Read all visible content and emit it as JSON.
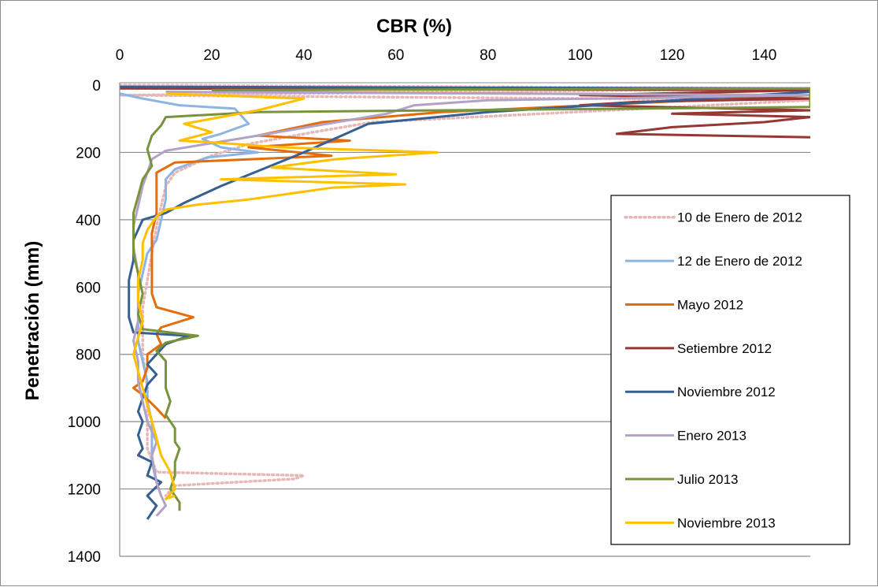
{
  "chart_data": {
    "type": "line",
    "title": "",
    "xlabel": "CBR (%)",
    "ylabel": "Penetración (mm)",
    "xlim": [
      0,
      150
    ],
    "ylim": [
      0,
      1400
    ],
    "y_inverted": true,
    "x_axis_position": "top",
    "x_ticks": [
      0,
      20,
      40,
      60,
      80,
      100,
      120,
      140
    ],
    "y_ticks": [
      0,
      200,
      400,
      600,
      800,
      1000,
      1200,
      1400
    ],
    "grid": "horizontal",
    "legend_position": "right",
    "series": [
      {
        "name": "10 de Enero de 2012",
        "color": "#e6b8b7",
        "style": "dotted",
        "points": [
          [
            0,
            0
          ],
          [
            150,
            10
          ],
          [
            0,
            30
          ],
          [
            150,
            45
          ],
          [
            55,
            110
          ],
          [
            42,
            140
          ],
          [
            28,
            175
          ],
          [
            20,
            210
          ],
          [
            12,
            260
          ],
          [
            10,
            300
          ],
          [
            9,
            360
          ],
          [
            8,
            420
          ],
          [
            7,
            500
          ],
          [
            6,
            580
          ],
          [
            5,
            660
          ],
          [
            5,
            740
          ],
          [
            5,
            800
          ],
          [
            6,
            900
          ],
          [
            6,
            1000
          ],
          [
            6,
            1080
          ],
          [
            8,
            1150
          ],
          [
            40,
            1160
          ],
          [
            38,
            1170
          ],
          [
            12,
            1190
          ],
          [
            10,
            1220
          ]
        ]
      },
      {
        "name": "12 de Enero de 2012",
        "color": "#8eb4e3",
        "style": "solid",
        "points": [
          [
            0,
            25
          ],
          [
            5,
            40
          ],
          [
            13,
            60
          ],
          [
            25,
            70
          ],
          [
            28,
            115
          ],
          [
            22,
            145
          ],
          [
            18,
            160
          ],
          [
            22,
            185
          ],
          [
            30,
            200
          ],
          [
            19,
            215
          ],
          [
            12,
            250
          ],
          [
            10,
            280
          ],
          [
            10,
            340
          ],
          [
            9,
            400
          ],
          [
            8,
            460
          ],
          [
            6,
            500
          ],
          [
            5,
            560
          ],
          [
            4,
            620
          ],
          [
            4,
            700
          ],
          [
            4,
            760
          ],
          [
            5,
            820
          ],
          [
            6,
            880
          ],
          [
            6,
            940
          ],
          [
            7,
            1000
          ],
          [
            7,
            1060
          ],
          [
            7,
            1120
          ],
          [
            8,
            1180
          ]
        ]
      },
      {
        "name": "Mayo 2012",
        "color": "#e46c0a",
        "style": "solid",
        "points": [
          [
            20,
            20
          ],
          [
            150,
            30
          ],
          [
            70,
            80
          ],
          [
            44,
            110
          ],
          [
            30,
            150
          ],
          [
            50,
            165
          ],
          [
            28,
            185
          ],
          [
            46,
            210
          ],
          [
            12,
            230
          ],
          [
            8,
            260
          ],
          [
            8,
            320
          ],
          [
            8,
            380
          ],
          [
            7,
            440
          ],
          [
            7,
            500
          ],
          [
            7,
            560
          ],
          [
            7,
            620
          ],
          [
            8,
            660
          ],
          [
            16,
            690
          ],
          [
            9,
            720
          ],
          [
            8,
            740
          ],
          [
            9,
            770
          ],
          [
            6,
            800
          ],
          [
            6,
            840
          ],
          [
            5,
            880
          ],
          [
            3,
            900
          ],
          [
            5,
            920
          ],
          [
            8,
            960
          ],
          [
            10,
            990
          ]
        ]
      },
      {
        "name": "Setiembre 2012",
        "color": "#953735",
        "style": "solid",
        "points": [
          [
            0,
            10
          ],
          [
            150,
            15
          ],
          [
            100,
            30
          ],
          [
            150,
            40
          ],
          [
            112,
            50
          ],
          [
            100,
            60
          ],
          [
            150,
            75
          ],
          [
            120,
            85
          ],
          [
            150,
            95
          ],
          [
            140,
            110
          ],
          [
            120,
            125
          ],
          [
            108,
            145
          ],
          [
            150,
            155
          ]
        ]
      },
      {
        "name": "Noviembre 2012",
        "color": "#376092",
        "style": "solid",
        "points": [
          [
            0,
            5
          ],
          [
            150,
            10
          ],
          [
            150,
            20
          ],
          [
            80,
            80
          ],
          [
            54,
            115
          ],
          [
            40,
            200
          ],
          [
            22,
            300
          ],
          [
            14,
            350
          ],
          [
            10,
            380
          ],
          [
            5,
            400
          ],
          [
            3,
            460
          ],
          [
            3,
            520
          ],
          [
            2,
            580
          ],
          [
            2,
            640
          ],
          [
            2,
            690
          ],
          [
            3,
            735
          ],
          [
            15,
            745
          ],
          [
            10,
            770
          ],
          [
            8,
            800
          ],
          [
            6,
            830
          ],
          [
            8,
            860
          ],
          [
            6,
            890
          ],
          [
            5,
            930
          ],
          [
            4,
            970
          ],
          [
            5,
            1000
          ],
          [
            4,
            1040
          ],
          [
            5,
            1080
          ],
          [
            4,
            1100
          ],
          [
            7,
            1120
          ],
          [
            6,
            1160
          ],
          [
            9,
            1180
          ],
          [
            6,
            1220
          ],
          [
            8,
            1250
          ],
          [
            6,
            1290
          ]
        ]
      },
      {
        "name": "Enero 2013",
        "color": "#b3a2c7",
        "style": "solid",
        "points": [
          [
            10,
            20
          ],
          [
            150,
            30
          ],
          [
            80,
            45
          ],
          [
            64,
            60
          ],
          [
            58,
            85
          ],
          [
            30,
            150
          ],
          [
            10,
            195
          ],
          [
            7,
            220
          ],
          [
            6,
            260
          ],
          [
            5,
            300
          ],
          [
            4,
            360
          ],
          [
            3,
            420
          ],
          [
            3,
            480
          ],
          [
            4,
            560
          ],
          [
            4,
            640
          ],
          [
            4,
            700
          ],
          [
            3,
            760
          ],
          [
            4,
            820
          ],
          [
            4,
            880
          ],
          [
            5,
            940
          ],
          [
            6,
            1000
          ],
          [
            8,
            1060
          ],
          [
            7,
            1100
          ],
          [
            8,
            1180
          ],
          [
            9,
            1220
          ],
          [
            10,
            1250
          ],
          [
            8,
            1280
          ]
        ]
      },
      {
        "name": "Julio 2013",
        "color": "#77933c",
        "style": "solid",
        "points": [
          [
            20,
            15
          ],
          [
            150,
            10
          ],
          [
            150,
            65
          ],
          [
            30,
            80
          ],
          [
            10,
            95
          ],
          [
            9,
            120
          ],
          [
            7,
            150
          ],
          [
            6,
            190
          ],
          [
            7,
            240
          ],
          [
            5,
            280
          ],
          [
            4,
            330
          ],
          [
            3,
            380
          ],
          [
            3,
            440
          ],
          [
            3,
            500
          ],
          [
            4,
            560
          ],
          [
            5,
            620
          ],
          [
            4,
            680
          ],
          [
            5,
            725
          ],
          [
            17,
            745
          ],
          [
            10,
            765
          ],
          [
            8,
            790
          ],
          [
            10,
            820
          ],
          [
            10,
            900
          ],
          [
            11,
            940
          ],
          [
            10,
            980
          ],
          [
            12,
            1020
          ],
          [
            12,
            1060
          ],
          [
            13,
            1080
          ],
          [
            12,
            1120
          ],
          [
            12,
            1160
          ],
          [
            11,
            1200
          ],
          [
            13,
            1240
          ],
          [
            13,
            1265
          ]
        ]
      },
      {
        "name": "Noviembre 2013",
        "color": "#ffc000",
        "style": "solid",
        "points": [
          [
            10,
            25
          ],
          [
            40,
            40
          ],
          [
            30,
            75
          ],
          [
            14,
            115
          ],
          [
            20,
            140
          ],
          [
            13,
            165
          ],
          [
            20,
            170
          ],
          [
            35,
            185
          ],
          [
            69,
            200
          ],
          [
            47,
            220
          ],
          [
            33,
            245
          ],
          [
            60,
            265
          ],
          [
            22,
            280
          ],
          [
            62,
            295
          ],
          [
            46,
            305
          ],
          [
            28,
            340
          ],
          [
            17,
            355
          ],
          [
            10,
            370
          ],
          [
            8,
            390
          ],
          [
            6,
            430
          ],
          [
            5,
            470
          ],
          [
            5,
            520
          ],
          [
            4,
            580
          ],
          [
            4,
            640
          ],
          [
            5,
            700
          ],
          [
            4,
            750
          ],
          [
            3,
            800
          ],
          [
            4,
            850
          ],
          [
            5,
            900
          ],
          [
            6,
            950
          ],
          [
            7,
            1000
          ],
          [
            8,
            1050
          ],
          [
            9,
            1100
          ],
          [
            11,
            1150
          ],
          [
            12,
            1200
          ],
          [
            10,
            1230
          ],
          [
            12,
            1220
          ]
        ]
      }
    ]
  }
}
